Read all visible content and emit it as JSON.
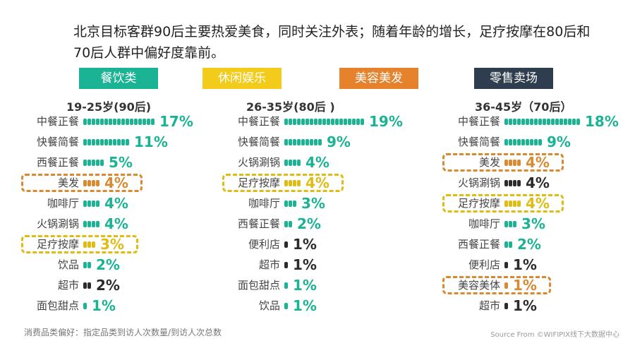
{
  "headline": "北京目标客群90后主要热爱美食，同时关注外表；随着年龄的增长，足疗按摩在80后和70后人群中偏好度靠前。",
  "legend": [
    {
      "label": "餐饮类",
      "color": "#1ab394"
    },
    {
      "label": "休闲娱乐",
      "color": "#f3cb1b"
    },
    {
      "label": "美容美发",
      "color": "#e5822b"
    },
    {
      "label": "零售卖场",
      "color": "#2e3e4f"
    }
  ],
  "colors": {
    "dining": "#1ab394",
    "leisure": "#e0bb14",
    "beauty": "#d9892f",
    "retail": "#2b2b2b"
  },
  "chart_data": [
    {
      "type": "bar",
      "title": "19-25岁(90后)",
      "categories": [
        "中餐正餐",
        "快餐简餐",
        "西餐正餐",
        "美发",
        "咖啡厅",
        "火锅涮锅",
        "足疗按摩",
        "饮品",
        "超市",
        "面包甜点"
      ],
      "values": [
        17,
        11,
        5,
        4,
        4,
        4,
        3,
        2,
        2,
        1
      ],
      "labels": [
        "17%",
        "11%",
        "5%",
        "4%",
        "4%",
        "4%",
        "3%",
        "2%",
        "2%",
        "1%"
      ],
      "groups": [
        "dining",
        "dining",
        "dining",
        "beauty",
        "dining",
        "dining",
        "leisure",
        "dining",
        "retail",
        "dining"
      ],
      "highlighted": [
        false,
        false,
        false,
        true,
        false,
        false,
        true,
        false,
        false,
        false
      ]
    },
    {
      "type": "bar",
      "title": "26-35岁(80后 )",
      "categories": [
        "中餐正餐",
        "快餐简餐",
        "火锅涮锅",
        "足疗按摩",
        "咖啡厅",
        "西餐正餐",
        "便利店",
        "超市",
        "面包甜点",
        "饮品"
      ],
      "values": [
        19,
        9,
        4,
        4,
        3,
        2,
        1,
        1,
        1,
        1
      ],
      "labels": [
        "19%",
        "9%",
        "4%",
        "4%",
        "3%",
        "2%",
        "1%",
        "1%",
        "1%",
        "1%"
      ],
      "groups": [
        "dining",
        "dining",
        "dining",
        "leisure",
        "dining",
        "dining",
        "retail",
        "retail",
        "dining",
        "dining"
      ],
      "highlighted": [
        false,
        false,
        false,
        true,
        false,
        false,
        false,
        false,
        false,
        false
      ]
    },
    {
      "type": "bar",
      "title": "36-45岁（70后）",
      "categories": [
        "中餐正餐",
        "快餐简餐",
        "美发",
        "火锅涮锅",
        "足疗按摩",
        "咖啡厅",
        "西餐正餐",
        "便利店",
        "美容美体",
        "超市"
      ],
      "values": [
        18,
        9,
        4,
        4,
        4,
        3,
        2,
        1,
        1,
        1
      ],
      "labels": [
        "18%",
        "9%",
        "4%",
        "4%",
        "4%",
        "3%",
        "2%",
        "1%",
        "1%",
        "1%"
      ],
      "groups": [
        "dining",
        "dining",
        "beauty",
        "retail",
        "leisure",
        "dining",
        "dining",
        "retail",
        "beauty",
        "retail"
      ],
      "highlighted": [
        false,
        false,
        true,
        false,
        true,
        false,
        false,
        false,
        true,
        false
      ]
    }
  ],
  "footnote": "消费品类偏好：指定品类到访人次数量/到访人次总数",
  "source": "Source From ©WIFIPIX线下大数据中心"
}
